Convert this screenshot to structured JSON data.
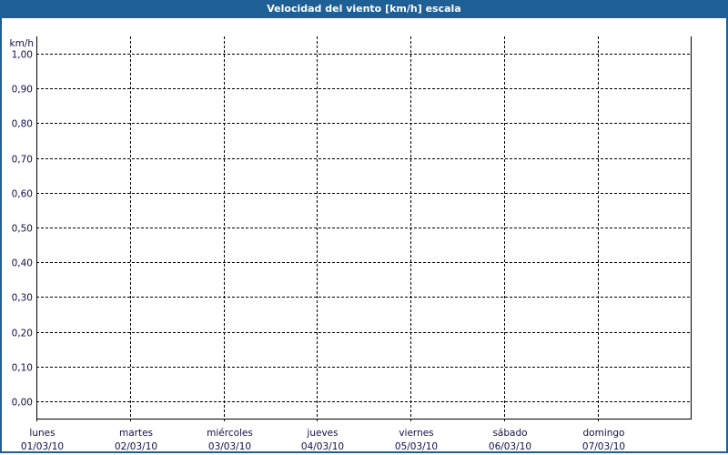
{
  "window": {
    "title": "Velocidad del viento [km/h] escala"
  },
  "colors": {
    "titlebar": "#1e5f96",
    "grid": "#000000",
    "text": "#10104a"
  },
  "chart_data": {
    "type": "line",
    "title": "Velocidad del viento [km/h] escala",
    "ylabel": "km/h",
    "ylim": [
      0,
      1
    ],
    "yticks": [
      "0,00",
      "0,10",
      "0,20",
      "0,30",
      "0,40",
      "0,50",
      "0,60",
      "0,70",
      "0,80",
      "0,90",
      "1,00"
    ],
    "xticks": [
      {
        "day": "lunes",
        "date": "01/03/10"
      },
      {
        "day": "martes",
        "date": "02/03/10"
      },
      {
        "day": "miércoles",
        "date": "03/03/10"
      },
      {
        "day": "jueves",
        "date": "04/03/10"
      },
      {
        "day": "viernes",
        "date": "05/03/10"
      },
      {
        "day": "sábado",
        "date": "06/03/10"
      },
      {
        "day": "domingo",
        "date": "07/03/10"
      }
    ],
    "grid": true,
    "series": []
  }
}
